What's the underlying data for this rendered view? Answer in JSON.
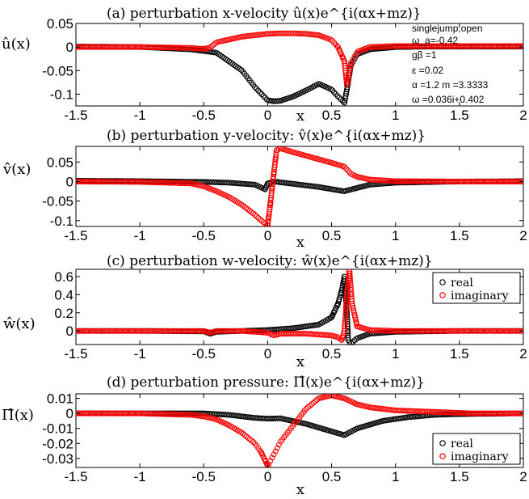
{
  "chart_data": [
    {
      "type": "scatter",
      "title": "(a) perturbation x-velocity   û(x)e^{i(αx+mz)}",
      "ylabel": "û(x)",
      "xlabel": "x",
      "xlim": [
        -1.5,
        2
      ],
      "ylim": [
        -0.125,
        0.05
      ],
      "xticks": [
        "-1.5",
        "-1",
        "-0.5",
        "0",
        "0.5",
        "1",
        "1.5",
        "2"
      ],
      "yticks": [
        "0.05",
        "0",
        "-0.05",
        "-0.1"
      ],
      "ytick_values": [
        0.05,
        0,
        -0.05,
        -0.1
      ],
      "annotations": [
        "singlejump,open",
        "ω_a=-0.42",
        "gβ =1",
        "ε =0.02",
        "α =1.2 m =3.3333",
        "ω =0.036i+0.402"
      ],
      "series": [
        {
          "color": "#000000",
          "x": [
            -1.5,
            -1.0,
            -0.6,
            -0.4,
            -0.2,
            -0.1,
            0.0,
            0.05,
            0.1,
            0.2,
            0.3,
            0.4,
            0.5,
            0.55,
            0.6,
            0.62,
            0.65,
            0.7,
            0.8,
            1.0,
            1.3,
            1.6,
            2.0
          ],
          "y": [
            0.001,
            0.0,
            -0.005,
            -0.012,
            -0.05,
            -0.085,
            -0.113,
            -0.115,
            -0.114,
            -0.105,
            -0.092,
            -0.078,
            -0.09,
            -0.105,
            -0.118,
            -0.09,
            -0.04,
            -0.015,
            -0.005,
            0.0,
            0.001,
            0.001,
            0.001
          ]
        },
        {
          "color": "#ff0000",
          "x": [
            -1.5,
            -1.0,
            -0.6,
            -0.5,
            -0.45,
            -0.4,
            -0.2,
            0.0,
            0.1,
            0.2,
            0.3,
            0.4,
            0.5,
            0.55,
            0.6,
            0.62,
            0.65,
            0.7,
            0.8,
            1.0,
            1.5,
            2.0
          ],
          "y": [
            0.0,
            0.0,
            -0.002,
            -0.004,
            -0.001,
            0.01,
            0.022,
            0.028,
            0.029,
            0.029,
            0.028,
            0.025,
            0.015,
            0.0,
            -0.03,
            -0.08,
            -0.035,
            -0.01,
            0.0,
            0.002,
            0.002,
            0.002
          ]
        }
      ]
    },
    {
      "type": "scatter",
      "title": "(b) perturbation y-velocity:   v̂(x)e^{i(αx+mz)}",
      "ylabel": "v̂(x)",
      "xlabel": "x",
      "xlim": [
        -1.5,
        2
      ],
      "ylim": [
        -0.115,
        0.09
      ],
      "xticks": [
        "-1.5",
        "-1",
        "-0.5",
        "0",
        "0.5",
        "1",
        "1.5",
        "2"
      ],
      "yticks": [
        "0.05",
        "0",
        "-0.05",
        "-0.1"
      ],
      "ytick_values": [
        0.05,
        0,
        -0.05,
        -0.1
      ],
      "series": [
        {
          "color": "#000000",
          "x": [
            -1.5,
            -1.0,
            -0.5,
            -0.3,
            -0.1,
            -0.02,
            0.0,
            0.05,
            0.2,
            0.4,
            0.6,
            0.62,
            0.8,
            1.0,
            1.5,
            2.0
          ],
          "y": [
            0.002,
            0.001,
            -0.001,
            -0.003,
            -0.008,
            -0.02,
            -0.005,
            0.0,
            -0.006,
            -0.014,
            -0.025,
            -0.023,
            -0.008,
            -0.003,
            0.0,
            0.001
          ]
        },
        {
          "color": "#ff0000",
          "x": [
            -1.5,
            -1.0,
            -0.6,
            -0.5,
            -0.4,
            -0.3,
            -0.2,
            -0.1,
            -0.05,
            0.0,
            0.02,
            0.04,
            0.07,
            0.1,
            0.2,
            0.3,
            0.4,
            0.5,
            0.6,
            0.65,
            0.7,
            0.8,
            1.0,
            1.5,
            2.0
          ],
          "y": [
            0.0,
            -0.001,
            -0.005,
            -0.012,
            -0.025,
            -0.04,
            -0.06,
            -0.085,
            -0.1,
            -0.112,
            -0.06,
            0.0,
            0.08,
            0.085,
            0.075,
            0.066,
            0.057,
            0.048,
            0.038,
            0.02,
            0.012,
            0.005,
            0.001,
            0.0,
            0.0
          ]
        }
      ]
    },
    {
      "type": "scatter",
      "title": "(c) perturbation w-velocity:   ŵ(x)e^{i(αx+mz)}",
      "ylabel": "ŵ(x)",
      "xlabel": "x",
      "xlim": [
        -1.5,
        2
      ],
      "ylim": [
        -0.15,
        0.68
      ],
      "xticks": [
        "-1.5",
        "-1",
        "-0.5",
        "0",
        "0.5",
        "1",
        "1.5",
        "2"
      ],
      "yticks": [
        "0.6",
        "0.4",
        "0.2",
        "0"
      ],
      "ytick_values": [
        0.6,
        0.4,
        0.2,
        0
      ],
      "legend": [
        "real",
        "imaginary"
      ],
      "legend_position": "top-right",
      "series": [
        {
          "name": "real",
          "color": "#000000",
          "x": [
            -1.5,
            -1.0,
            -0.5,
            -0.45,
            -0.4,
            -0.2,
            0.0,
            0.2,
            0.4,
            0.5,
            0.55,
            0.58,
            0.6,
            0.62,
            0.63,
            0.65,
            0.7,
            0.8,
            1.0,
            1.5,
            2.0
          ],
          "y": [
            0.0,
            0.0,
            -0.005,
            -0.03,
            -0.01,
            0.0,
            0.01,
            0.03,
            0.07,
            0.15,
            0.3,
            0.45,
            0.6,
            0.2,
            -0.1,
            -0.14,
            -0.08,
            -0.03,
            -0.01,
            0.0,
            0.0
          ]
        },
        {
          "name": "imaginary",
          "color": "#ff0000",
          "x": [
            -1.5,
            -1.0,
            -0.5,
            -0.45,
            -0.4,
            -0.2,
            0.0,
            0.05,
            0.1,
            0.3,
            0.5,
            0.55,
            0.58,
            0.6,
            0.62,
            0.64,
            0.66,
            0.7,
            0.8,
            1.0,
            1.5,
            2.0
          ],
          "y": [
            0.0,
            0.0,
            0.0,
            -0.02,
            0.0,
            0.0,
            -0.02,
            -0.05,
            -0.03,
            -0.03,
            -0.05,
            -0.07,
            -0.1,
            0.0,
            0.4,
            0.66,
            0.3,
            0.05,
            0.01,
            0.0,
            0.0,
            0.0
          ]
        }
      ]
    },
    {
      "type": "scatter",
      "title": "(d) perturbation pressure:   Π̂(x)e^{i(αx+mz)}",
      "ylabel": "Π̂(x)",
      "xlabel": "x",
      "xlim": [
        -1.5,
        2
      ],
      "ylim": [
        -0.036,
        0.013
      ],
      "xticks": [
        "-1.5",
        "-1",
        "-0.5",
        "0",
        "0.5",
        "1",
        "1.5",
        "2"
      ],
      "yticks": [
        "0.01",
        "0",
        "-0.01",
        "-0.02",
        "-0.03"
      ],
      "ytick_values": [
        0.01,
        0,
        -0.01,
        -0.02,
        -0.03
      ],
      "legend": [
        "real",
        "imaginary"
      ],
      "legend_position": "bottom-right",
      "series": [
        {
          "name": "real",
          "color": "#000000",
          "x": [
            -1.5,
            -1.0,
            -0.5,
            -0.3,
            -0.1,
            0.0,
            0.1,
            0.3,
            0.5,
            0.6,
            0.7,
            0.9,
            1.1,
            1.3,
            1.5,
            2.0
          ],
          "y": [
            0.0,
            0.0,
            0.0,
            -0.001,
            -0.003,
            -0.0035,
            -0.0033,
            -0.007,
            -0.012,
            -0.0145,
            -0.01,
            -0.005,
            -0.0025,
            -0.001,
            -0.0005,
            0.0
          ]
        },
        {
          "name": "imaginary",
          "color": "#ff0000",
          "x": [
            -1.5,
            -1.0,
            -0.6,
            -0.5,
            -0.4,
            -0.3,
            -0.2,
            -0.1,
            -0.05,
            0.0,
            0.05,
            0.1,
            0.2,
            0.3,
            0.4,
            0.5,
            0.6,
            0.7,
            0.8,
            1.0,
            1.3,
            1.6,
            2.0
          ],
          "y": [
            0.0,
            0.0,
            -0.001,
            -0.002,
            -0.004,
            -0.008,
            -0.013,
            -0.02,
            -0.026,
            -0.035,
            -0.027,
            -0.019,
            -0.008,
            0.003,
            0.01,
            0.012,
            0.01,
            0.006,
            0.004,
            0.002,
            0.001,
            0.0,
            0.0
          ]
        }
      ]
    }
  ]
}
